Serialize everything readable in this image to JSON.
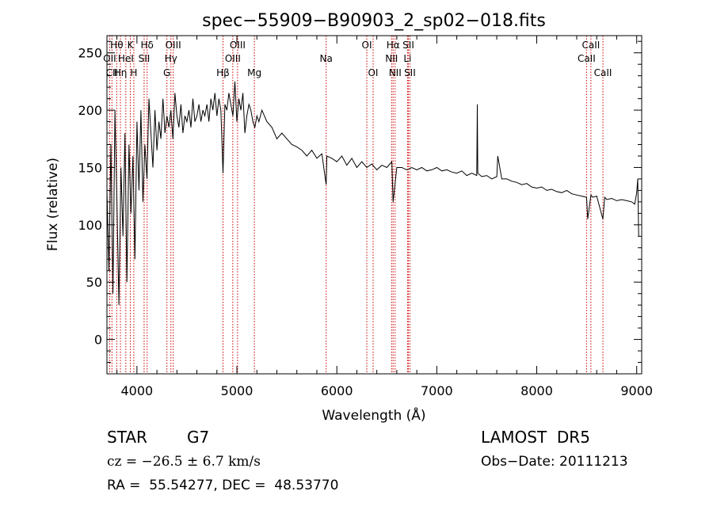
{
  "chart_data": {
    "type": "line",
    "title": "spec−55909−B90903_2_sp02−018.fits",
    "xlabel": "Wavelength (Å)",
    "ylabel": "Flux (relative)",
    "xlim": [
      3700,
      9050
    ],
    "ylim": [
      -30,
      265
    ],
    "xticks": [
      4000,
      5000,
      6000,
      7000,
      8000,
      9000
    ],
    "yticks": [
      0,
      50,
      100,
      150,
      200,
      250
    ],
    "grid": false,
    "line_color": "#000000",
    "marker_color": "#cc0000",
    "series": [
      {
        "x": [
          3700,
          3720,
          3740,
          3760,
          3780,
          3800,
          3820,
          3840,
          3860,
          3880,
          3900,
          3920,
          3940,
          3960,
          3980,
          4000,
          4020,
          4040,
          4060,
          4080,
          4100,
          4120,
          4140,
          4160,
          4180,
          4200,
          4220,
          4240,
          4260,
          4280,
          4300,
          4320,
          4340,
          4360,
          4380,
          4400,
          4420,
          4440,
          4460,
          4480,
          4500,
          4520,
          4540,
          4560,
          4580,
          4600,
          4620,
          4640,
          4660,
          4680,
          4700,
          4720,
          4740,
          4760,
          4780,
          4800,
          4820,
          4840,
          4861,
          4880,
          4900,
          4920,
          4940,
          4960,
          4980,
          5000,
          5020,
          5040,
          5060,
          5080,
          5100,
          5120,
          5140,
          5160,
          5180,
          5200,
          5220,
          5250,
          5300,
          5350,
          5400,
          5450,
          5500,
          5550,
          5600,
          5650,
          5700,
          5750,
          5800,
          5850,
          5893,
          5900,
          5950,
          6000,
          6050,
          6100,
          6150,
          6200,
          6250,
          6300,
          6350,
          6400,
          6450,
          6500,
          6550,
          6563,
          6600,
          6650,
          6700,
          6750,
          6800,
          6850,
          6900,
          6950,
          7000,
          7050,
          7100,
          7150,
          7200,
          7250,
          7300,
          7350,
          7400,
          7405,
          7410,
          7450,
          7500,
          7550,
          7600,
          7610,
          7650,
          7700,
          7750,
          7800,
          7850,
          7900,
          7950,
          8000,
          8050,
          8100,
          8150,
          8200,
          8250,
          8300,
          8350,
          8400,
          8450,
          8498,
          8510,
          8542,
          8560,
          8600,
          8662,
          8680,
          8700,
          8750,
          8800,
          8850,
          8900,
          8950,
          8980,
          9000,
          9010,
          9020
        ],
        "y": [
          130,
          60,
          170,
          40,
          200,
          120,
          30,
          150,
          90,
          180,
          50,
          170,
          110,
          160,
          70,
          190,
          130,
          200,
          120,
          170,
          140,
          210,
          180,
          150,
          200,
          165,
          190,
          175,
          210,
          180,
          195,
          185,
          200,
          175,
          215,
          195,
          185,
          205,
          180,
          195,
          190,
          200,
          185,
          210,
          190,
          195,
          205,
          190,
          200,
          195,
          205,
          190,
          210,
          200,
          215,
          195,
          210,
          200,
          145,
          205,
          200,
          215,
          205,
          195,
          225,
          190,
          210,
          200,
          215,
          180,
          195,
          205,
          200,
          190,
          185,
          195,
          190,
          200,
          190,
          185,
          175,
          180,
          175,
          170,
          168,
          165,
          160,
          165,
          158,
          162,
          135,
          160,
          158,
          155,
          160,
          152,
          158,
          150,
          155,
          150,
          153,
          148,
          152,
          150,
          155,
          120,
          150,
          150,
          148,
          150,
          148,
          150,
          147,
          148,
          150,
          147,
          148,
          146,
          145,
          147,
          143,
          145,
          143,
          205,
          145,
          142,
          143,
          140,
          142,
          160,
          140,
          140,
          138,
          137,
          135,
          136,
          133,
          132,
          133,
          130,
          131,
          129,
          128,
          130,
          127,
          126,
          125,
          124,
          105,
          126,
          124,
          125,
          105,
          124,
          122,
          123,
          121,
          122,
          121,
          120,
          118,
          128,
          140,
          90
        ]
      }
    ],
    "line_markers": [
      {
        "x": 3727,
        "label": "OII",
        "row": 2
      },
      {
        "x": 3750,
        "label": "CII",
        "row": 3
      },
      {
        "x": 3798,
        "label": "Hθ",
        "row": 1
      },
      {
        "x": 3835,
        "label": "Hη",
        "row": 3
      },
      {
        "x": 3889,
        "label": "HeI",
        "row": 2
      },
      {
        "x": 3934,
        "label": "K",
        "row": 1
      },
      {
        "x": 3969,
        "label": "H",
        "row": 3
      },
      {
        "x": 4072,
        "label": "SII",
        "row": 2
      },
      {
        "x": 4102,
        "label": "Hδ",
        "row": 1
      },
      {
        "x": 4300,
        "label": "G",
        "row": 3
      },
      {
        "x": 4340,
        "label": "Hγ",
        "row": 2
      },
      {
        "x": 4363,
        "label": "OIII",
        "row": 1
      },
      {
        "x": 4861,
        "label": "Hβ",
        "row": 3
      },
      {
        "x": 4959,
        "label": "OIII",
        "row": 2
      },
      {
        "x": 5007,
        "label": "OIII",
        "row": 1
      },
      {
        "x": 5175,
        "label": "Mg",
        "row": 3
      },
      {
        "x": 5893,
        "label": "Na",
        "row": 2
      },
      {
        "x": 6300,
        "label": "OI",
        "row": 1
      },
      {
        "x": 6363,
        "label": "OI",
        "row": 3
      },
      {
        "x": 6548,
        "label": "NII",
        "row": 2
      },
      {
        "x": 6563,
        "label": "Hα",
        "row": 1
      },
      {
        "x": 6583,
        "label": "NII",
        "row": 3
      },
      {
        "x": 6707,
        "label": "Li",
        "row": 2
      },
      {
        "x": 6716,
        "label": "SII",
        "row": 1
      },
      {
        "x": 6731,
        "label": "SII",
        "row": 3
      },
      {
        "x": 8498,
        "label": "CaII",
        "row": 2
      },
      {
        "x": 8542,
        "label": "CaII",
        "row": 1
      },
      {
        "x": 8662,
        "label": "CaII",
        "row": 3
      }
    ]
  },
  "info": {
    "object_class": "STAR",
    "subclass": "G7",
    "cz_line": "cz = −26.5 ± 6.7 km/s",
    "coords_line": "RA =  55.54277, DEC =  48.53770",
    "survey": "LAMOST  DR5",
    "obs_date": "Obs−Date: 20111213"
  }
}
